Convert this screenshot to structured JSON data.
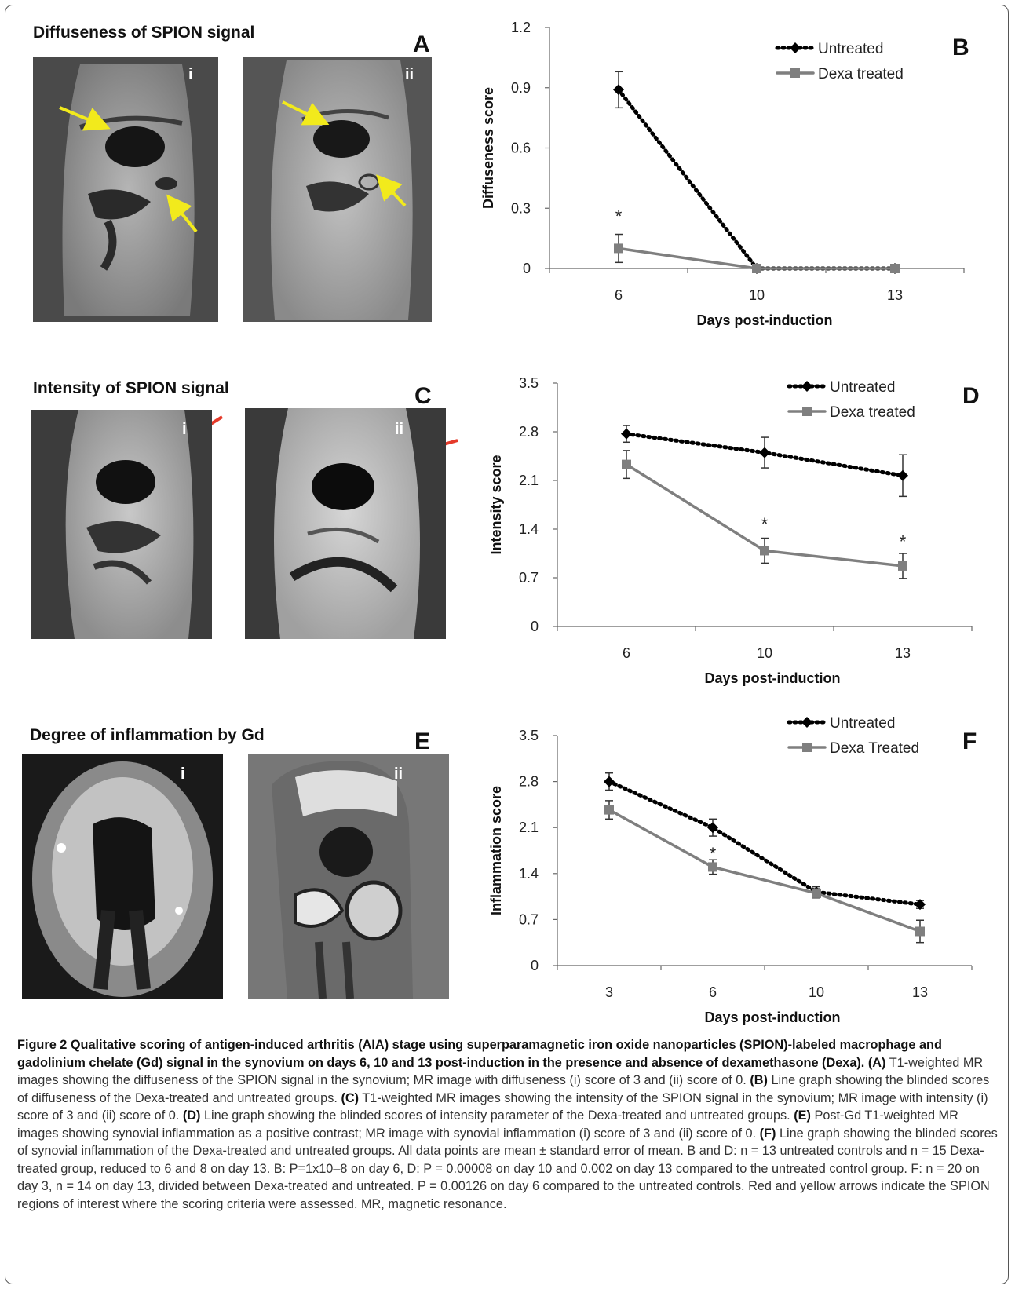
{
  "panels": {
    "A": {
      "letter": "A",
      "title": "Diffuseness of SPION signal",
      "img_i": "i",
      "img_ii": "ii"
    },
    "B": {
      "letter": "B"
    },
    "C": {
      "letter": "C",
      "title": "Intensity of SPION signal",
      "img_i": "i",
      "img_ii": "ii"
    },
    "D": {
      "letter": "D"
    },
    "E": {
      "letter": "E",
      "title": "Degree of inflammation by Gd",
      "img_i": "i",
      "img_ii": "ii"
    },
    "F": {
      "letter": "F"
    }
  },
  "colors": {
    "untreated": "#000000",
    "treated": "#7f7f7f",
    "yellow_arrow": "#f2ea1c",
    "red_arrow": "#e53a2a"
  },
  "chart_data": [
    {
      "id": "B",
      "type": "line",
      "xlabel": "Days post-induction",
      "ylabel": "Diffuseness score",
      "categories": [
        "6",
        "10",
        "13"
      ],
      "yticks": [
        "0",
        "0.3",
        "0.6",
        "0.9",
        "1.2"
      ],
      "ylim": [
        0,
        1.2
      ],
      "legend": "top-right",
      "series": [
        {
          "name": "Untreated",
          "values": [
            0.89,
            0,
            0
          ],
          "errors": [
            0.09,
            0,
            0
          ],
          "style": "dotted",
          "marker": "diamond"
        },
        {
          "name": "Dexa treated",
          "values": [
            0.1,
            0,
            0
          ],
          "errors": [
            0.07,
            0,
            0
          ],
          "style": "solid",
          "marker": "square"
        }
      ],
      "annotations": [
        {
          "category": "6",
          "y": 0.27,
          "text": "*"
        }
      ]
    },
    {
      "id": "D",
      "type": "line",
      "xlabel": "Days post-induction",
      "ylabel": "Intensity score",
      "categories": [
        "6",
        "10",
        "13"
      ],
      "yticks": [
        "0",
        "0.7",
        "1.4",
        "2.1",
        "2.8",
        "3.5"
      ],
      "ylim": [
        0,
        3.5
      ],
      "legend": "top-right",
      "series": [
        {
          "name": "Untreated",
          "values": [
            2.77,
            2.5,
            2.17
          ],
          "errors": [
            0.12,
            0.22,
            0.3
          ],
          "style": "dotted",
          "marker": "diamond"
        },
        {
          "name": "Dexa treated",
          "values": [
            2.33,
            1.09,
            0.87
          ],
          "errors": [
            0.2,
            0.18,
            0.18
          ],
          "style": "solid",
          "marker": "square"
        }
      ],
      "annotations": [
        {
          "category": "10",
          "y": 1.5,
          "text": "*"
        },
        {
          "category": "13",
          "y": 1.25,
          "text": "*"
        }
      ]
    },
    {
      "id": "F",
      "type": "line",
      "xlabel": "Days post-induction",
      "ylabel": "Inflammation score",
      "categories": [
        "3",
        "6",
        "10",
        "13"
      ],
      "yticks": [
        "0",
        "0.7",
        "1.4",
        "2.1",
        "2.8",
        "3.5"
      ],
      "ylim": [
        0,
        3.5
      ],
      "legend": "top-right",
      "series": [
        {
          "name": "Untreated",
          "values": [
            2.8,
            2.1,
            1.12,
            0.93
          ],
          "errors": [
            0.13,
            0.13,
            0.08,
            0.06
          ],
          "style": "dotted",
          "marker": "diamond"
        },
        {
          "name": "Dexa Treated",
          "values": [
            2.37,
            1.5,
            1.1,
            0.52
          ],
          "errors": [
            0.14,
            0.11,
            0.07,
            0.17
          ],
          "style": "solid",
          "marker": "square"
        }
      ],
      "annotations": [
        {
          "category": "6",
          "y": 1.73,
          "text": "*"
        }
      ]
    }
  ],
  "caption": {
    "heading": "Figure 2 Qualitative scoring of antigen-induced arthritis (AIA) stage using superparamagnetic iron oxide nanoparticles (SPION)-labeled macrophage and gadolinium chelate (Gd) signal in the synovium on days 6, 10 and 13 post-induction in the presence and absence of dexamethasone (Dexa).",
    "parts": [
      {
        "label": "(A)",
        "text": "T1-weighted MR images showing the diffuseness of the SPION signal in the synovium; MR image with diffuseness (i) score of 3 and (ii) score of 0."
      },
      {
        "label": "(B)",
        "text": "Line graph showing the blinded scores of diffuseness of the Dexa-treated and untreated groups."
      },
      {
        "label": "(C)",
        "text": "T1-weighted MR images showing the intensity of the SPION signal in the synovium; MR image with intensity (i) score of 3 and (ii) score of 0."
      },
      {
        "label": "(D)",
        "text": "Line graph showing the blinded scores of intensity parameter of the Dexa-treated and untreated groups."
      },
      {
        "label": "(E)",
        "text": "Post-Gd T1-weighted MR images showing synovial inflammation as a positive contrast; MR image with synovial inflammation (i) score of 3 and (ii) score of 0."
      },
      {
        "label": "(F)",
        "text": "Line graph showing the blinded scores of synovial inflammation of the Dexa-treated and untreated groups. All data points are mean ± standard error of mean. B and D: n = 13 untreated controls and n = 15 Dexa-treated group, reduced to 6 and 8 on day 13. B: P=1x10–8 on day 6, D: P = 0.00008 on day 10 and 0.002 on day 13 compared to the untreated control group. F: n = 20 on day 3, n = 14 on day 13, divided between Dexa-treated and untreated. P = 0.00126 on day 6 compared to the untreated controls. Red and yellow arrows indicate the SPION regions of interest where the scoring criteria were assessed. MR, magnetic resonance."
      }
    ]
  }
}
